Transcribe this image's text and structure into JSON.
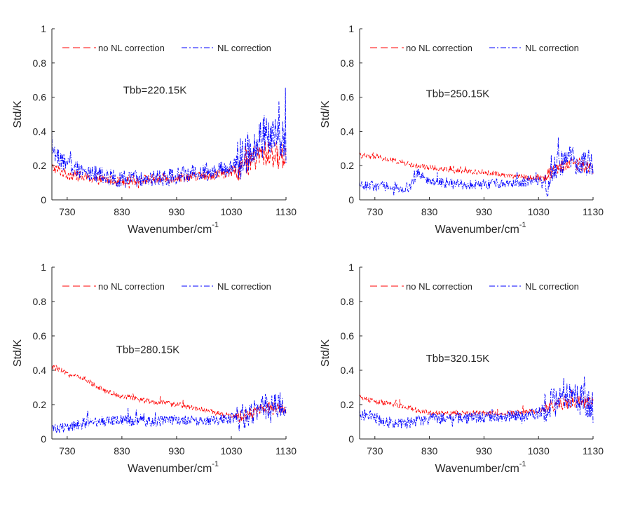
{
  "chart_data": [
    {
      "type": "line",
      "annotation": "Tbb=220.15K",
      "xlabel": "Wavenumber/cm",
      "xlabel_superscript": "-1",
      "ylabel": "Std/K",
      "xlim": [
        702,
        1130
      ],
      "ylim": [
        0,
        1
      ],
      "xticks": [
        730,
        830,
        930,
        1030,
        1130
      ],
      "yticks": [
        0,
        0.2,
        0.4,
        0.6,
        0.8,
        1
      ],
      "ytick_labels": [
        "0",
        "0.2",
        "0.4",
        "0.6",
        "0.8",
        "1"
      ],
      "grid": false,
      "legend": "top, horizontal",
      "series": [
        {
          "name": "no NL correction",
          "color": "#ff0000",
          "style": "dashed",
          "x": [
            702,
            730,
            780,
            830,
            880,
            930,
            980,
            1030,
            1060,
            1090,
            1110,
            1130
          ],
          "y": [
            0.19,
            0.15,
            0.12,
            0.11,
            0.12,
            0.13,
            0.14,
            0.16,
            0.22,
            0.27,
            0.26,
            0.25
          ],
          "noise": 0.03
        },
        {
          "name": "NL correction",
          "color": "#0000ff",
          "style": "dash-dot",
          "x": [
            702,
            730,
            780,
            830,
            880,
            930,
            980,
            1030,
            1060,
            1090,
            1110,
            1130
          ],
          "y": [
            0.28,
            0.2,
            0.15,
            0.12,
            0.12,
            0.14,
            0.17,
            0.18,
            0.28,
            0.38,
            0.36,
            0.32
          ],
          "noise": 0.05
        }
      ]
    },
    {
      "type": "line",
      "annotation": "Tbb=250.15K",
      "xlabel": "Wavenumber/cm",
      "xlabel_superscript": "-1",
      "ylabel": "Std/K",
      "xlim": [
        702,
        1130
      ],
      "ylim": [
        0,
        1
      ],
      "xticks": [
        730,
        830,
        930,
        1030,
        1130
      ],
      "yticks": [
        0,
        0.2,
        0.4,
        0.6,
        0.8,
        1
      ],
      "ytick_labels": [
        "0",
        "0.2",
        "0.4",
        "0.6",
        "0.8",
        "1"
      ],
      "grid": false,
      "legend": "top, horizontal",
      "series": [
        {
          "name": "no NL correction",
          "color": "#ff0000",
          "style": "dashed",
          "x": [
            702,
            730,
            780,
            800,
            830,
            880,
            930,
            980,
            1020,
            1040,
            1060,
            1090,
            1130
          ],
          "y": [
            0.26,
            0.25,
            0.22,
            0.2,
            0.19,
            0.17,
            0.16,
            0.14,
            0.13,
            0.13,
            0.18,
            0.22,
            0.18
          ],
          "noise": 0.015
        },
        {
          "name": "NL correction",
          "color": "#0000ff",
          "style": "dash-dot",
          "x": [
            702,
            730,
            780,
            795,
            810,
            830,
            880,
            930,
            980,
            1030,
            1045,
            1060,
            1090,
            1130
          ],
          "y": [
            0.09,
            0.08,
            0.07,
            0.08,
            0.16,
            0.11,
            0.09,
            0.09,
            0.1,
            0.11,
            0.08,
            0.2,
            0.24,
            0.2
          ],
          "noise": 0.03
        }
      ]
    },
    {
      "type": "line",
      "annotation": "Tbb=280.15K",
      "xlabel": "Wavenumber/cm",
      "xlabel_superscript": "-1",
      "ylabel": "Std/K",
      "xlim": [
        702,
        1130
      ],
      "ylim": [
        0,
        1
      ],
      "xticks": [
        730,
        830,
        930,
        1030,
        1130
      ],
      "yticks": [
        0,
        0.2,
        0.4,
        0.6,
        0.8,
        1
      ],
      "ytick_labels": [
        "0",
        "0.2",
        "0.4",
        "0.6",
        "0.8",
        "1"
      ],
      "grid": false,
      "legend": "top, horizontal",
      "series": [
        {
          "name": "no NL correction",
          "color": "#ff0000",
          "style": "dashed",
          "x": [
            702,
            730,
            760,
            800,
            830,
            880,
            930,
            980,
            1030,
            1060,
            1090,
            1130
          ],
          "y": [
            0.42,
            0.38,
            0.35,
            0.28,
            0.25,
            0.22,
            0.2,
            0.17,
            0.13,
            0.14,
            0.18,
            0.17
          ],
          "noise": 0.015
        },
        {
          "name": "NL correction",
          "color": "#0000ff",
          "style": "dash-dot",
          "x": [
            702,
            730,
            780,
            830,
            880,
            930,
            980,
            1030,
            1060,
            1090,
            1130
          ],
          "y": [
            0.06,
            0.07,
            0.1,
            0.11,
            0.1,
            0.11,
            0.1,
            0.12,
            0.14,
            0.19,
            0.2
          ],
          "noise": 0.03
        }
      ]
    },
    {
      "type": "line",
      "annotation": "Tbb=320.15K",
      "xlabel": "Wavenumber/cm",
      "xlabel_superscript": "-1",
      "ylabel": "Std/K",
      "xlim": [
        702,
        1130
      ],
      "ylim": [
        0,
        1
      ],
      "xticks": [
        730,
        830,
        930,
        1030,
        1130
      ],
      "yticks": [
        0,
        0.2,
        0.4,
        0.6,
        0.8,
        1
      ],
      "ytick_labels": [
        "0",
        "0.2",
        "0.4",
        "0.6",
        "0.8",
        "1"
      ],
      "grid": false,
      "legend": "top, horizontal",
      "series": [
        {
          "name": "no NL correction",
          "color": "#ff0000",
          "style": "dashed",
          "x": [
            702,
            730,
            780,
            830,
            880,
            930,
            980,
            1030,
            1060,
            1090,
            1130
          ],
          "y": [
            0.24,
            0.22,
            0.19,
            0.15,
            0.15,
            0.15,
            0.15,
            0.16,
            0.2,
            0.22,
            0.21
          ],
          "noise": 0.015
        },
        {
          "name": "NL correction",
          "color": "#0000ff",
          "style": "dash-dot",
          "x": [
            702,
            730,
            770,
            800,
            830,
            880,
            930,
            980,
            1030,
            1060,
            1090,
            1130
          ],
          "y": [
            0.15,
            0.12,
            0.08,
            0.1,
            0.12,
            0.12,
            0.13,
            0.13,
            0.15,
            0.22,
            0.24,
            0.2
          ],
          "noise": 0.035
        }
      ]
    }
  ]
}
